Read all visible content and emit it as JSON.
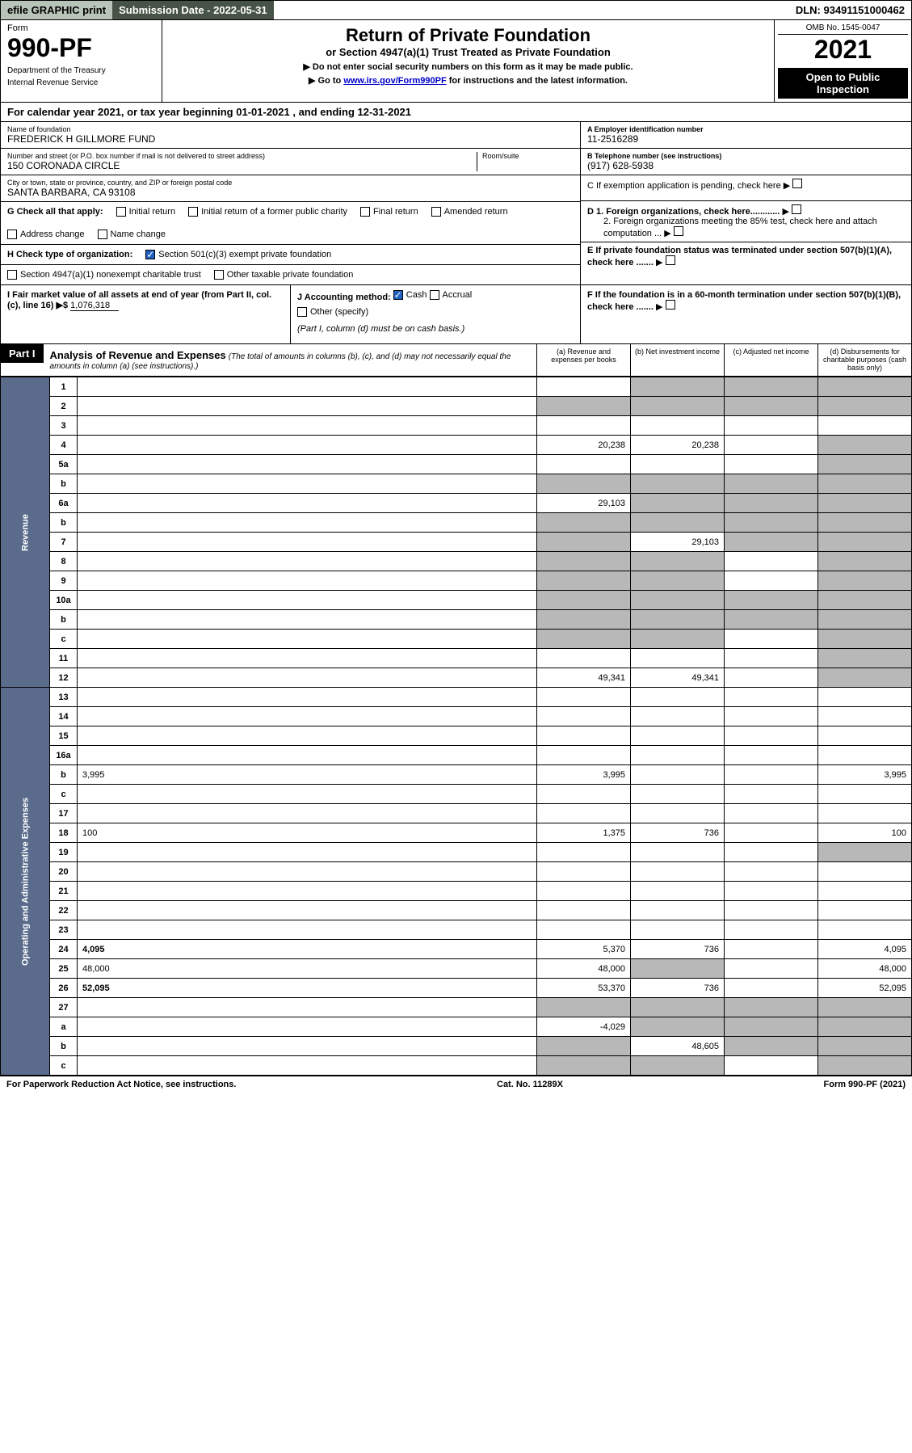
{
  "topbar": {
    "efile": "efile GRAPHIC print",
    "subdate_label": "Submission Date - ",
    "subdate": "2022-05-31",
    "dln_label": "DLN: ",
    "dln": "93491151000462"
  },
  "header": {
    "form_label": "Form",
    "form_num": "990-PF",
    "dept1": "Department of the Treasury",
    "dept2": "Internal Revenue Service",
    "title": "Return of Private Foundation",
    "subtitle": "or Section 4947(a)(1) Trust Treated as Private Foundation",
    "note1": "▶ Do not enter social security numbers on this form as it may be made public.",
    "note2_pre": "▶ Go to ",
    "note2_link": "www.irs.gov/Form990PF",
    "note2_post": " for instructions and the latest information.",
    "omb": "OMB No. 1545-0047",
    "year": "2021",
    "open_pub1": "Open to Public",
    "open_pub2": "Inspection"
  },
  "cal_year": {
    "text_pre": "For calendar year 2021, or tax year beginning ",
    "begin": "01-01-2021",
    "text_mid": " , and ending ",
    "end": "12-31-2021"
  },
  "foundation": {
    "name_label": "Name of foundation",
    "name": "FREDERICK H GILLMORE FUND",
    "addr_label": "Number and street (or P.O. box number if mail is not delivered to street address)",
    "addr": "150 CORONADA CIRCLE",
    "room_label": "Room/suite",
    "city_label": "City or town, state or province, country, and ZIP or foreign postal code",
    "city": "SANTA BARBARA, CA  93108",
    "ein_label": "A Employer identification number",
    "ein": "11-2516289",
    "phone_label": "B Telephone number (see instructions)",
    "phone": "(917) 628-5938",
    "c_label": "C If exemption application is pending, check here",
    "d1_label": "D 1. Foreign organizations, check here............",
    "d2_label": "2. Foreign organizations meeting the 85% test, check here and attach computation ...",
    "e_label": "E If private foundation status was terminated under section 507(b)(1)(A), check here .......",
    "f_label": "F If the foundation is in a 60-month termination under section 507(b)(1)(B), check here .......",
    "g_label": "G Check all that apply:",
    "g_opts": [
      "Initial return",
      "Initial return of a former public charity",
      "Final return",
      "Amended return",
      "Address change",
      "Name change"
    ],
    "h_label": "H Check type of organization:",
    "h_opt1": "Section 501(c)(3) exempt private foundation",
    "h_opt2": "Section 4947(a)(1) nonexempt charitable trust",
    "h_opt3": "Other taxable private foundation",
    "i_label": "I Fair market value of all assets at end of year (from Part II, col. (c), line 16) ▶$ ",
    "i_val": "1,076,318",
    "j_label": "J Accounting method:",
    "j_cash": "Cash",
    "j_accrual": "Accrual",
    "j_other": "Other (specify)",
    "j_note": "(Part I, column (d) must be on cash basis.)"
  },
  "part1": {
    "label": "Part I",
    "title": "Analysis of Revenue and Expenses",
    "sub": "(The total of amounts in columns (b), (c), and (d) may not necessarily equal the amounts in column (a) (see instructions).)",
    "col_a": "(a) Revenue and expenses per books",
    "col_b": "(b) Net investment income",
    "col_c": "(c) Adjusted net income",
    "col_d": "(d) Disbursements for charitable purposes (cash basis only)"
  },
  "sidelabels": {
    "revenue": "Revenue",
    "expenses": "Operating and Administrative Expenses"
  },
  "lines": [
    {
      "n": "1",
      "d": "",
      "a": "",
      "b": "",
      "c": "",
      "db": true,
      "dc": true,
      "dd": true
    },
    {
      "n": "2",
      "d": "",
      "a": "",
      "b": "",
      "c": "",
      "da": true,
      "db": true,
      "dc": true,
      "dd": true
    },
    {
      "n": "3",
      "d": "",
      "a": "",
      "b": "",
      "c": ""
    },
    {
      "n": "4",
      "d": "",
      "a": "20,238",
      "b": "20,238",
      "c": "",
      "dd": true
    },
    {
      "n": "5a",
      "d": "",
      "a": "",
      "b": "",
      "c": "",
      "dd": true
    },
    {
      "n": "b",
      "d": "",
      "a": "",
      "b": "",
      "c": "",
      "da": true,
      "db": true,
      "dc": true,
      "dd": true
    },
    {
      "n": "6a",
      "d": "",
      "a": "29,103",
      "b": "",
      "c": "",
      "db": true,
      "dc": true,
      "dd": true
    },
    {
      "n": "b",
      "d": "",
      "a": "",
      "b": "",
      "c": "",
      "da": true,
      "db": true,
      "dc": true,
      "dd": true
    },
    {
      "n": "7",
      "d": "",
      "a": "",
      "b": "29,103",
      "c": "",
      "da": true,
      "dc": true,
      "dd": true
    },
    {
      "n": "8",
      "d": "",
      "a": "",
      "b": "",
      "c": "",
      "da": true,
      "db": true,
      "dd": true
    },
    {
      "n": "9",
      "d": "",
      "a": "",
      "b": "",
      "c": "",
      "da": true,
      "db": true,
      "dd": true
    },
    {
      "n": "10a",
      "d": "",
      "a": "",
      "b": "",
      "c": "",
      "da": true,
      "db": true,
      "dc": true,
      "dd": true
    },
    {
      "n": "b",
      "d": "",
      "a": "",
      "b": "",
      "c": "",
      "da": true,
      "db": true,
      "dc": true,
      "dd": true
    },
    {
      "n": "c",
      "d": "",
      "a": "",
      "b": "",
      "c": "",
      "da": true,
      "db": true,
      "dd": true
    },
    {
      "n": "11",
      "d": "",
      "a": "",
      "b": "",
      "c": "",
      "dd": true
    },
    {
      "n": "12",
      "d": "",
      "a": "49,341",
      "b": "49,341",
      "c": "",
      "bold": true,
      "dd": true
    },
    {
      "n": "13",
      "d": "",
      "a": "",
      "b": "",
      "c": ""
    },
    {
      "n": "14",
      "d": "",
      "a": "",
      "b": "",
      "c": ""
    },
    {
      "n": "15",
      "d": "",
      "a": "",
      "b": "",
      "c": ""
    },
    {
      "n": "16a",
      "d": "",
      "a": "",
      "b": "",
      "c": ""
    },
    {
      "n": "b",
      "d": "3,995",
      "a": "3,995",
      "b": "",
      "c": ""
    },
    {
      "n": "c",
      "d": "",
      "a": "",
      "b": "",
      "c": ""
    },
    {
      "n": "17",
      "d": "",
      "a": "",
      "b": "",
      "c": ""
    },
    {
      "n": "18",
      "d": "100",
      "a": "1,375",
      "b": "736",
      "c": ""
    },
    {
      "n": "19",
      "d": "",
      "a": "",
      "b": "",
      "c": "",
      "dd": true
    },
    {
      "n": "20",
      "d": "",
      "a": "",
      "b": "",
      "c": ""
    },
    {
      "n": "21",
      "d": "",
      "a": "",
      "b": "",
      "c": ""
    },
    {
      "n": "22",
      "d": "",
      "a": "",
      "b": "",
      "c": ""
    },
    {
      "n": "23",
      "d": "",
      "a": "",
      "b": "",
      "c": ""
    },
    {
      "n": "24",
      "d": "4,095",
      "a": "5,370",
      "b": "736",
      "c": "",
      "bold": true
    },
    {
      "n": "25",
      "d": "48,000",
      "a": "48,000",
      "b": "",
      "c": "",
      "db": true
    },
    {
      "n": "26",
      "d": "52,095",
      "a": "53,370",
      "b": "736",
      "c": "",
      "bold": true
    },
    {
      "n": "27",
      "d": "",
      "a": "",
      "b": "",
      "c": "",
      "da": true,
      "db": true,
      "dc": true,
      "dd": true
    },
    {
      "n": "a",
      "d": "",
      "a": "-4,029",
      "b": "",
      "c": "",
      "bold": true,
      "db": true,
      "dc": true,
      "dd": true
    },
    {
      "n": "b",
      "d": "",
      "a": "",
      "b": "48,605",
      "c": "",
      "bold": true,
      "da": true,
      "dc": true,
      "dd": true
    },
    {
      "n": "c",
      "d": "",
      "a": "",
      "b": "",
      "c": "",
      "bold": true,
      "da": true,
      "db": true,
      "dd": true
    }
  ],
  "footer": {
    "left": "For Paperwork Reduction Act Notice, see instructions.",
    "mid": "Cat. No. 11289X",
    "right": "Form 990-PF (2021)"
  }
}
